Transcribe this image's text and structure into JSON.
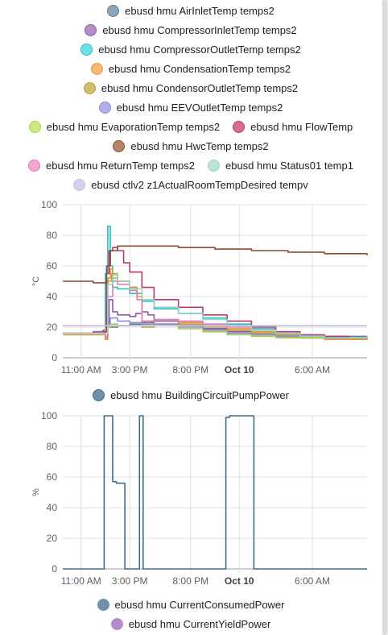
{
  "chart_data": [
    {
      "type": "line",
      "ylabel": "°C",
      "ylim": [
        0,
        100
      ],
      "yticks": [
        "0",
        "20",
        "40",
        "60",
        "80",
        "100"
      ],
      "x_ticks": [
        {
          "label": "11:00 AM",
          "hour": 0,
          "bold": false
        },
        {
          "label": "3:00 PM",
          "hour": 4,
          "bold": false
        },
        {
          "label": "8:00 PM",
          "hour": 9,
          "bold": false
        },
        {
          "label": "Oct 10",
          "hour": 13,
          "bold": true
        },
        {
          "label": "6:00 AM",
          "hour": 19,
          "bold": false
        }
      ],
      "xlim": [
        -1.5,
        23.5
      ],
      "grid": true,
      "legend_position": "top",
      "series": [
        {
          "name": "ebusd hmu AirInletTemp temps2",
          "color": "#5f7a8c",
          "swatch": "#8fa5b8",
          "points": [
            [
              -1.5,
              16
            ],
            [
              1,
              17
            ],
            [
              2,
              20
            ],
            [
              3,
              21
            ],
            [
              4,
              22
            ],
            [
              5,
              23
            ],
            [
              6,
              22
            ],
            [
              8,
              21
            ],
            [
              10,
              19
            ],
            [
              12,
              17
            ],
            [
              14,
              16
            ],
            [
              16,
              15
            ],
            [
              18,
              14
            ],
            [
              20,
              14
            ],
            [
              22,
              14
            ],
            [
              23.5,
              14
            ]
          ]
        },
        {
          "name": "ebusd hmu CompressorInletTemp temps2",
          "color": "#8e5aa8",
          "swatch": "#b48ec8",
          "points": [
            [
              -1.5,
              16
            ],
            [
              1,
              17
            ],
            [
              1.8,
              18
            ],
            [
              2.1,
              22
            ],
            [
              2.3,
              38
            ],
            [
              2.6,
              30
            ],
            [
              3,
              28
            ],
            [
              3.5,
              28
            ],
            [
              4,
              27
            ],
            [
              4.5,
              29
            ],
            [
              5,
              30
            ],
            [
              5.5,
              28
            ],
            [
              6,
              24
            ],
            [
              8,
              21
            ],
            [
              10,
              19
            ],
            [
              12,
              17
            ],
            [
              14,
              15
            ],
            [
              16,
              14
            ],
            [
              18,
              13
            ],
            [
              20,
              13
            ],
            [
              22,
              13
            ],
            [
              23.5,
              14
            ]
          ]
        },
        {
          "name": "ebusd hmu CompressorOutletTemp temps2",
          "color": "#1fc1c1",
          "swatch": "#6ee0e0",
          "points": [
            [
              -1.5,
              16
            ],
            [
              1,
              16
            ],
            [
              1.9,
              16
            ],
            [
              2.0,
              55
            ],
            [
              2.2,
              86
            ],
            [
              2.4,
              60
            ],
            [
              2.6,
              46
            ],
            [
              3,
              45
            ],
            [
              4,
              42
            ],
            [
              5,
              37
            ],
            [
              6,
              32
            ],
            [
              8,
              29
            ],
            [
              10,
              26
            ],
            [
              12,
              22
            ],
            [
              14,
              19
            ],
            [
              16,
              17
            ],
            [
              18,
              15
            ],
            [
              20,
              14
            ],
            [
              22,
              13
            ],
            [
              23.5,
              14
            ]
          ]
        },
        {
          "name": "ebusd hmu CondensationTemp temps2",
          "color": "#e8953a",
          "swatch": "#f6b77a",
          "points": [
            [
              -1.5,
              15
            ],
            [
              1,
              15
            ],
            [
              1.9,
              15
            ],
            [
              2.0,
              12
            ],
            [
              2.2,
              52
            ],
            [
              2.4,
              58
            ],
            [
              2.6,
              52
            ],
            [
              3,
              50
            ],
            [
              4,
              46
            ],
            [
              4.6,
              40
            ],
            [
              5,
              22
            ],
            [
              5.5,
              24
            ],
            [
              6,
              25
            ],
            [
              8,
              23
            ],
            [
              10,
              21
            ],
            [
              12,
              19
            ],
            [
              14,
              17
            ],
            [
              16,
              15
            ],
            [
              18,
              13
            ],
            [
              20,
              12
            ],
            [
              22,
              12
            ],
            [
              23.5,
              13
            ]
          ]
        },
        {
          "name": "ebusd hmu CondensorOutletTemp temps2",
          "color": "#b5a23a",
          "swatch": "#d1c071",
          "points": [
            [
              -1.5,
              16
            ],
            [
              1,
              16
            ],
            [
              1.9,
              16
            ],
            [
              2.0,
              13
            ],
            [
              2.2,
              50
            ],
            [
              2.5,
              55
            ],
            [
              3,
              50
            ],
            [
              4,
              46
            ],
            [
              4.6,
              42
            ],
            [
              5,
              20
            ],
            [
              6,
              22
            ],
            [
              8,
              22
            ],
            [
              10,
              20
            ],
            [
              12,
              18
            ],
            [
              14,
              16
            ],
            [
              16,
              15
            ],
            [
              18,
              14
            ],
            [
              20,
              13
            ],
            [
              22,
              13
            ],
            [
              23.5,
              13
            ]
          ]
        },
        {
          "name": "ebusd hmu EEVOutletTemp temps2",
          "color": "#8c8cd4",
          "swatch": "#b0b0e6",
          "points": [
            [
              -1.5,
              16
            ],
            [
              1,
              16
            ],
            [
              1.9,
              16
            ],
            [
              2.0,
              20
            ],
            [
              2.4,
              26
            ],
            [
              3,
              24
            ],
            [
              4,
              23
            ],
            [
              5,
              22
            ],
            [
              6,
              22
            ],
            [
              8,
              20
            ],
            [
              10,
              18
            ],
            [
              12,
              16
            ],
            [
              14,
              15
            ],
            [
              16,
              14
            ],
            [
              18,
              13
            ],
            [
              20,
              13
            ],
            [
              22,
              13
            ],
            [
              23.5,
              13
            ]
          ]
        },
        {
          "name": "ebusd hmu EvaporationTemp temps2",
          "color": "#a8d14a",
          "swatch": "#cdea80",
          "points": [
            [
              -1.5,
              16
            ],
            [
              1,
              16
            ],
            [
              1.9,
              16
            ],
            [
              2.0,
              20
            ],
            [
              2.4,
              22
            ],
            [
              3,
              21
            ],
            [
              4,
              21
            ],
            [
              5,
              21
            ],
            [
              6,
              21
            ],
            [
              8,
              19
            ],
            [
              10,
              17
            ],
            [
              12,
              15
            ],
            [
              14,
              14
            ],
            [
              16,
              13
            ],
            [
              18,
              13
            ],
            [
              20,
              13
            ],
            [
              22,
              13
            ],
            [
              23.5,
              13
            ]
          ]
        },
        {
          "name": "ebusd hmu FlowTemp",
          "color": "#b83a6a",
          "swatch": "#d4708f",
          "points": [
            [
              -1.5,
              16
            ],
            [
              1,
              16
            ],
            [
              1.9,
              17
            ],
            [
              2.1,
              55
            ],
            [
              2.3,
              70
            ],
            [
              2.6,
              72
            ],
            [
              3,
              70
            ],
            [
              3.5,
              62
            ],
            [
              4,
              56
            ],
            [
              5,
              46
            ],
            [
              6,
              38
            ],
            [
              8,
              33
            ],
            [
              10,
              28
            ],
            [
              12,
              24
            ],
            [
              14,
              20
            ],
            [
              16,
              17
            ],
            [
              18,
              15
            ],
            [
              20,
              14
            ],
            [
              22,
              13
            ],
            [
              23.5,
              14
            ]
          ]
        },
        {
          "name": "ebusd hmu HwcTemp temps2",
          "color": "#8b4c32",
          "swatch": "#b88469",
          "points": [
            [
              -1.5,
              50
            ],
            [
              1,
              49
            ],
            [
              1.9,
              49
            ],
            [
              2.1,
              60
            ],
            [
              2.4,
              70
            ],
            [
              3,
              73
            ],
            [
              5,
              73
            ],
            [
              8,
              72
            ],
            [
              11,
              71
            ],
            [
              14,
              70
            ],
            [
              17,
              69
            ],
            [
              20,
              68
            ],
            [
              23.5,
              67
            ]
          ]
        },
        {
          "name": "ebusd hmu ReturnTemp temps2",
          "color": "#e07ab8",
          "swatch": "#f4a6d2",
          "points": [
            [
              -1.5,
              16
            ],
            [
              1,
              16
            ],
            [
              1.9,
              16
            ],
            [
              2.0,
              14
            ],
            [
              2.2,
              40
            ],
            [
              2.6,
              50
            ],
            [
              3,
              48
            ],
            [
              4,
              44
            ],
            [
              4.6,
              38
            ],
            [
              5,
              24
            ],
            [
              6,
              25
            ],
            [
              8,
              24
            ],
            [
              10,
              22
            ],
            [
              12,
              20
            ],
            [
              14,
              18
            ],
            [
              16,
              16
            ],
            [
              18,
              14
            ],
            [
              20,
              13
            ],
            [
              22,
              13
            ],
            [
              23.5,
              14
            ]
          ]
        },
        {
          "name": "ebusd hmu Status01 temp1",
          "color": "#9ad1c4",
          "swatch": "#b9e3d8",
          "points": [
            [
              -1.5,
              16
            ],
            [
              1,
              16
            ],
            [
              1.9,
              16
            ],
            [
              2.2,
              48
            ],
            [
              2.6,
              54
            ],
            [
              3,
              50
            ],
            [
              4,
              45
            ],
            [
              5,
              38
            ],
            [
              6,
              33
            ],
            [
              8,
              29
            ],
            [
              10,
              25
            ],
            [
              12,
              21
            ],
            [
              14,
              18
            ],
            [
              16,
              16
            ],
            [
              18,
              14
            ],
            [
              20,
              13
            ],
            [
              22,
              13
            ],
            [
              23.5,
              14
            ]
          ]
        },
        {
          "name": "ebusd ctlv2 z1ActualRoomTempDesired tempv",
          "color": "#c6bfe0",
          "swatch": "#d6d0ec",
          "points": [
            [
              -1.5,
              21
            ],
            [
              23.5,
              21
            ]
          ]
        }
      ]
    },
    {
      "type": "line",
      "ylabel": "%",
      "ylim": [
        0,
        100
      ],
      "yticks": [
        "0",
        "20",
        "40",
        "60",
        "80",
        "100"
      ],
      "x_ticks": [
        {
          "label": "11:00 AM",
          "hour": 0,
          "bold": false
        },
        {
          "label": "3:00 PM",
          "hour": 4,
          "bold": false
        },
        {
          "label": "8:00 PM",
          "hour": 9,
          "bold": false
        },
        {
          "label": "Oct 10",
          "hour": 13,
          "bold": true
        },
        {
          "label": "6:00 AM",
          "hour": 19,
          "bold": false
        }
      ],
      "xlim": [
        -1.5,
        23.5
      ],
      "grid": true,
      "legend_position": "top",
      "series": [
        {
          "name": "ebusd hmu BuildingCircuitPumpPower",
          "color": "#3d6e8c",
          "swatch": "#6f91a8",
          "points": [
            [
              -1.5,
              0
            ],
            [
              1.9,
              0
            ],
            [
              1.9,
              100
            ],
            [
              2.6,
              100
            ],
            [
              2.6,
              57
            ],
            [
              2.9,
              56
            ],
            [
              3.6,
              56
            ],
            [
              3.6,
              0
            ],
            [
              4.8,
              0
            ],
            [
              4.8,
              100
            ],
            [
              5.1,
              100
            ],
            [
              5.1,
              0
            ],
            [
              11.9,
              0
            ],
            [
              11.9,
              99
            ],
            [
              12.2,
              100
            ],
            [
              14.2,
              100
            ],
            [
              14.2,
              0
            ],
            [
              23.5,
              0
            ]
          ]
        }
      ]
    }
  ],
  "legend_bottom": [
    {
      "name": "ebusd hmu CurrentConsumedPower",
      "swatch": "#6f91a8"
    },
    {
      "name": "ebusd hmu CurrentYieldPower",
      "swatch": "#b48ec8"
    }
  ]
}
